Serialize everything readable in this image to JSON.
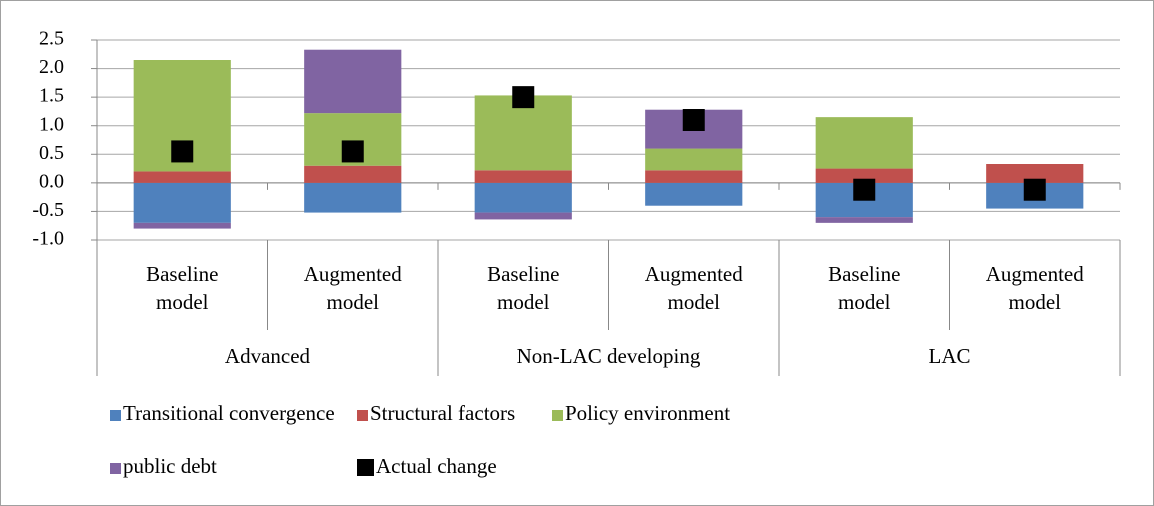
{
  "chart_data": {
    "type": "bar",
    "stacked": true,
    "categories": [
      "Baseline model",
      "Augmented model",
      "Baseline model",
      "Augmented model",
      "Baseline model",
      "Augmented model"
    ],
    "groups": [
      "Advanced",
      "Non-LAC developing",
      "LAC"
    ],
    "series": [
      {
        "name": "Transitional convergence",
        "color": "#4f81bd",
        "values": [
          -0.7,
          -0.52,
          -0.52,
          -0.4,
          -0.6,
          -0.45
        ]
      },
      {
        "name": "Structural factors",
        "color": "#c0504d",
        "values": [
          0.2,
          0.3,
          0.22,
          0.22,
          0.25,
          0.33
        ]
      },
      {
        "name": "Policy environment",
        "color": "#9bbb59",
        "values": [
          1.95,
          0.92,
          1.31,
          0.38,
          0.9,
          0
        ]
      },
      {
        "name": "public debt",
        "color": "#8064a2",
        "values": [
          -0.1,
          1.11,
          -0.12,
          0.68,
          -0.1,
          0
        ]
      },
      {
        "name": "Actual change",
        "color": "#000000",
        "type": "scatter",
        "values": [
          0.55,
          0.55,
          1.5,
          1.1,
          -0.12,
          -0.12
        ]
      }
    ],
    "ylim": [
      -1.0,
      2.5
    ],
    "yticks": [
      {
        "value": -1.0,
        "label": "-1.0"
      },
      -0.5,
      {
        "value": 0.0,
        "label": "0.0"
      },
      0.5,
      {
        "value": 1.0,
        "label": "1.0"
      },
      1.5,
      {
        "value": 2.0,
        "label": "2.0"
      },
      2.5
    ],
    "grid": true
  }
}
